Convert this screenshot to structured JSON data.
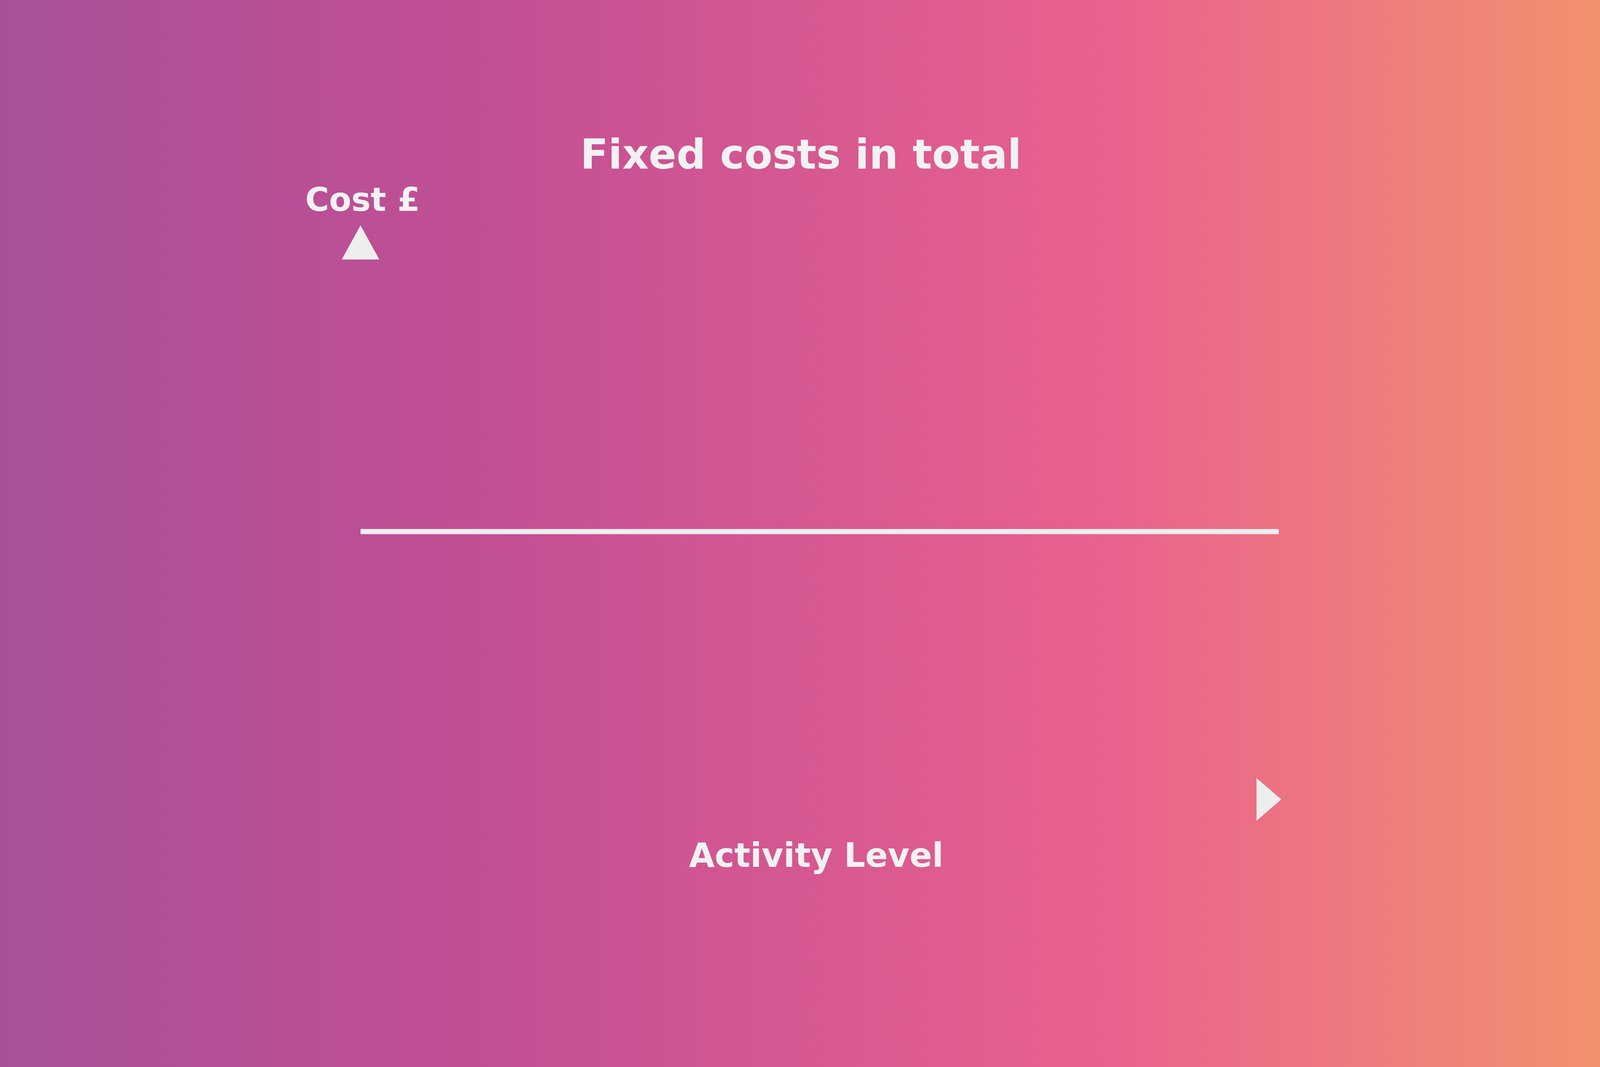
{
  "chart_data": {
    "type": "line",
    "title": "Fixed costs in total",
    "x_label": "Activity Level",
    "y_label": "Cost £",
    "x": [
      0,
      100
    ],
    "values": [
      47,
      47
    ],
    "color": "#eeeeee",
    "xlim": [
      0,
      100
    ],
    "ylim": [
      0,
      100
    ],
    "tick_labels": false,
    "grid": false
  }
}
